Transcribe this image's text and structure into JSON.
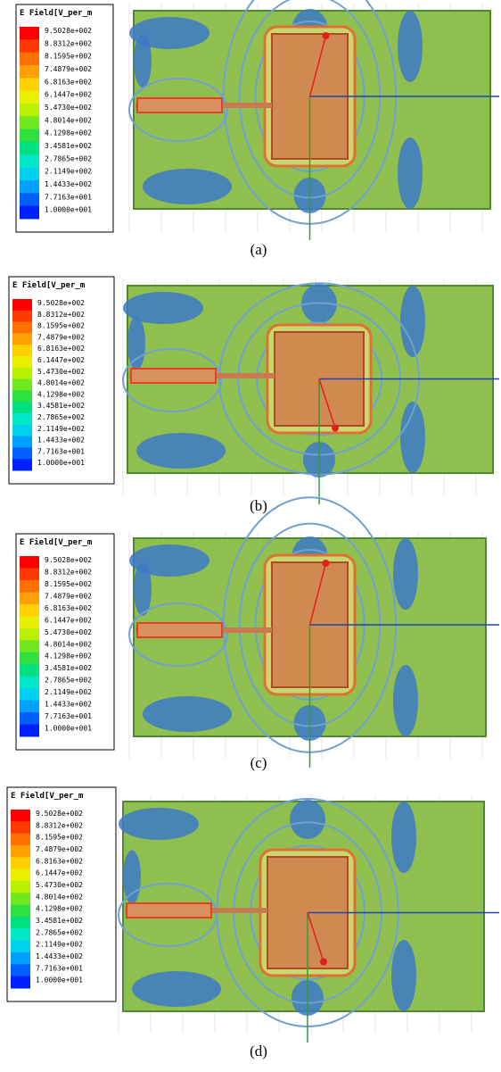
{
  "panels": [
    {
      "legend": {
        "title": "E Field[V_per_m",
        "labels": [
          "9.5028e+002",
          "8.8312e+002",
          "8.1595e+002",
          "7.4879e+002",
          "6.8163e+002",
          "6.1447e+002",
          "5.4730e+002",
          "4.8014e+002",
          "4.1298e+002",
          "3.4581e+002",
          "2.7865e+002",
          "2.1149e+002",
          "1.4433e+002",
          "7.7163e+001",
          "1.0000e+001"
        ]
      },
      "caption": "(a)"
    },
    {
      "legend": {
        "title": "E Field[V_per_m",
        "labels": [
          "9.5028e+002",
          "8.8312e+002",
          "8.1595e+002",
          "7.4879e+002",
          "6.8163e+002",
          "6.1447e+002",
          "5.4730e+002",
          "4.8014e+002",
          "4.1298e+002",
          "3.4581e+002",
          "2.7865e+002",
          "2.1149e+002",
          "1.4433e+002",
          "7.7163e+001",
          "1.0000e+001"
        ]
      },
      "caption": "(b)"
    },
    {
      "legend": {
        "title": "E Field[V_per_m",
        "labels": [
          "9.5028e+002",
          "8.8312e+002",
          "8.1595e+002",
          "7.4879e+002",
          "6.8163e+002",
          "6.1447e+002",
          "5.4730e+002",
          "4.8014e+002",
          "4.1298e+002",
          "3.4581e+002",
          "2.7865e+002",
          "2.1149e+002",
          "1.4433e+002",
          "7.7163e+001",
          "1.0000e+001"
        ]
      },
      "caption": "(c)"
    },
    {
      "legend": {
        "title": "E Field[V_per_m",
        "labels": [
          "9.5028e+002",
          "8.8312e+002",
          "8.1595e+002",
          "7.4879e+002",
          "6.8163e+002",
          "6.1447e+002",
          "5.4730e+002",
          "4.8014e+002",
          "4.1298e+002",
          "3.4581e+002",
          "2.7865e+002",
          "2.1149e+002",
          "1.4433e+002",
          "7.7163e+001",
          "1.0000e+001"
        ]
      },
      "caption": "(d)"
    }
  ]
}
